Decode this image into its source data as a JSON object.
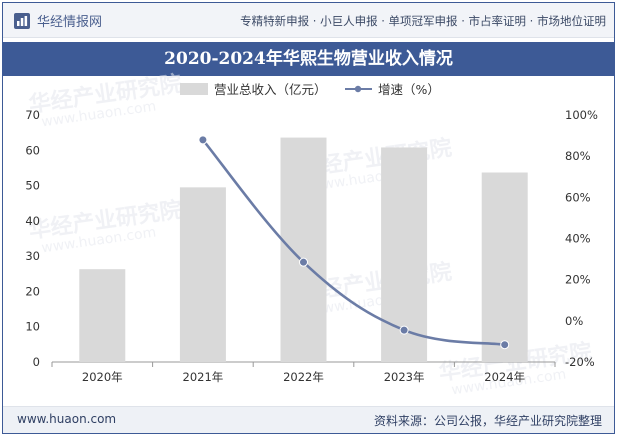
{
  "header": {
    "logo_text": "华经情报网",
    "tagline": "专精特新申报 · 小巨人申报 · 单项冠军申报 · 市占率证明 · 市场地位证明"
  },
  "footer": {
    "website": "www.huaon.com",
    "source": "资料来源：公司公报，华经产业研究院整理"
  },
  "watermark": {
    "text": "华经产业研究院",
    "url": "www.huaon.com"
  },
  "colors": {
    "bar": "#d9d9d9",
    "line": "#6b7ca6",
    "title_bg": "#3d5a96"
  },
  "chart_data": {
    "type": "bar",
    "title": "2020-2024年华熙生物营业收入情况",
    "categories": [
      "2020年",
      "2021年",
      "2022年",
      "2023年",
      "2024年"
    ],
    "series": [
      {
        "name": "营业总收入（亿元）",
        "type": "bar",
        "axis": "left",
        "values": [
          26.3,
          49.5,
          63.6,
          60.8,
          53.7
        ]
      },
      {
        "name": "增速（%）",
        "type": "line",
        "axis": "right",
        "values": [
          null,
          87.9,
          28.5,
          -4.5,
          -11.6
        ]
      }
    ],
    "y_left": {
      "min": 0,
      "max": 70,
      "ticks": [
        "0",
        "10",
        "20",
        "30",
        "40",
        "50",
        "60",
        "70"
      ]
    },
    "y_right": {
      "min": -20,
      "max": 100,
      "ticks": [
        "-20%",
        "0%",
        "20%",
        "40%",
        "60%",
        "80%",
        "100%"
      ]
    },
    "grid": false,
    "legend_position": "top-center"
  }
}
